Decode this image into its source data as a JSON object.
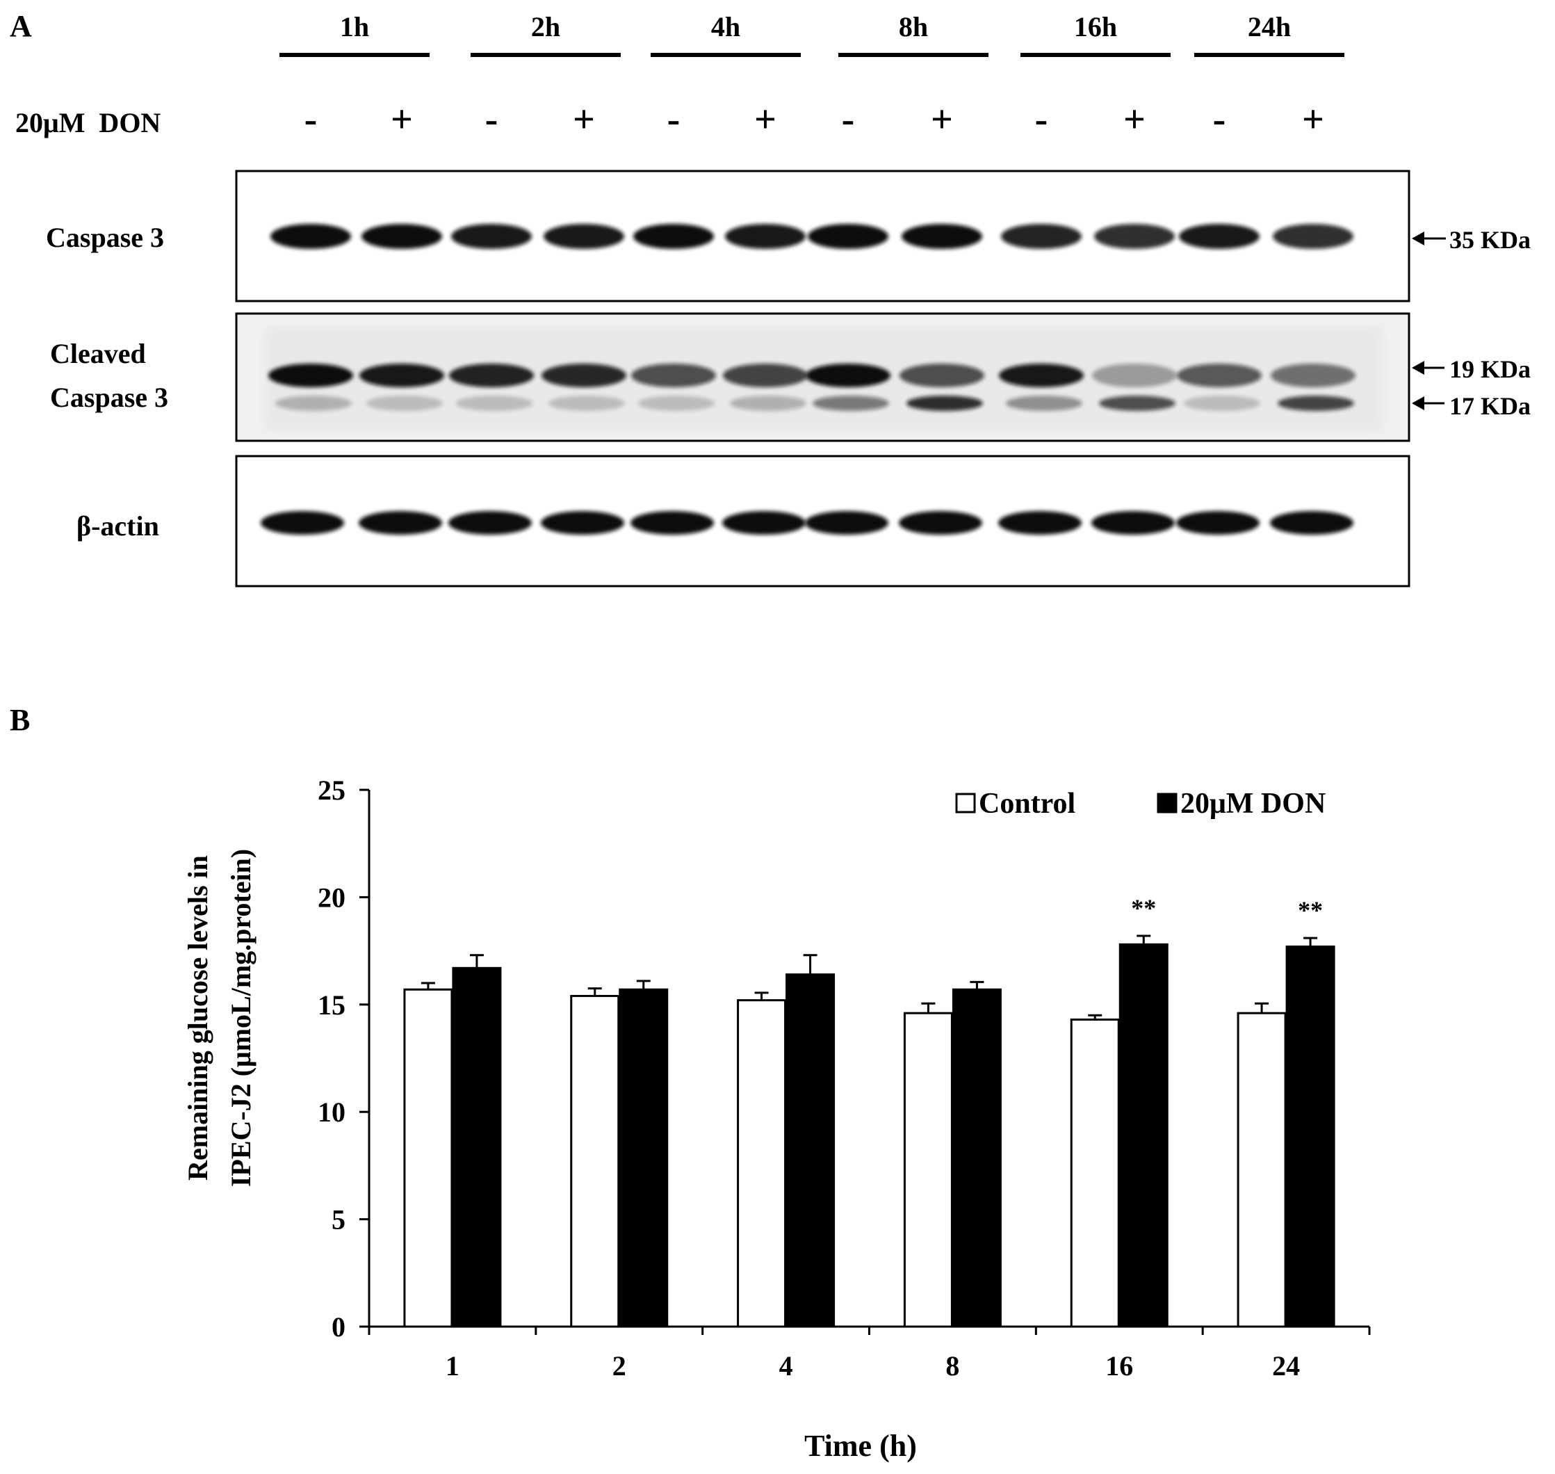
{
  "panel_a": {
    "label": "A",
    "time_points": [
      "1h",
      "2h",
      "4h",
      "8h",
      "16h",
      "24h"
    ],
    "treatment_label": "20μM  DON",
    "treatment_signs": [
      "-",
      "+",
      "-",
      "+",
      "-",
      "+",
      "-",
      "+",
      "-",
      "+",
      "-",
      "+"
    ],
    "blots": [
      {
        "name": "Caspase 3",
        "markers": [
          "35 KDa"
        ]
      },
      {
        "name": "Cleaved Caspase 3",
        "name_lines": [
          "Cleaved",
          "Caspase 3"
        ],
        "markers": [
          "19 KDa",
          "17 KDa"
        ]
      },
      {
        "name": "β-actin",
        "markers": []
      }
    ],
    "band_color": "#111111"
  },
  "panel_b": {
    "label": "B"
  },
  "chart_data": {
    "type": "bar",
    "title": "",
    "xlabel": "Time (h)",
    "ylabel_lines": [
      "Remaining glucose levels in",
      "IPEC-J2 (μmoL/mg.protein)"
    ],
    "categories": [
      "1",
      "2",
      "4",
      "8",
      "16",
      "24"
    ],
    "ylim": [
      0,
      25
    ],
    "yticks": [
      0,
      5,
      10,
      15,
      20,
      25
    ],
    "legend": {
      "placement": "top-right"
    },
    "series": [
      {
        "name": "Control",
        "color": "#ffffff",
        "values": [
          15.7,
          15.4,
          15.2,
          14.6,
          14.3,
          14.6
        ],
        "errors": [
          0.3,
          0.35,
          0.35,
          0.45,
          0.2,
          0.45
        ]
      },
      {
        "name": "20μM DON",
        "color": "#000000",
        "values": [
          16.7,
          15.7,
          16.4,
          15.7,
          17.8,
          17.7
        ],
        "errors": [
          0.6,
          0.4,
          0.9,
          0.35,
          0.4,
          0.4
        ]
      }
    ],
    "annotations": [
      "",
      "",
      "",
      "",
      "**",
      "**"
    ]
  }
}
